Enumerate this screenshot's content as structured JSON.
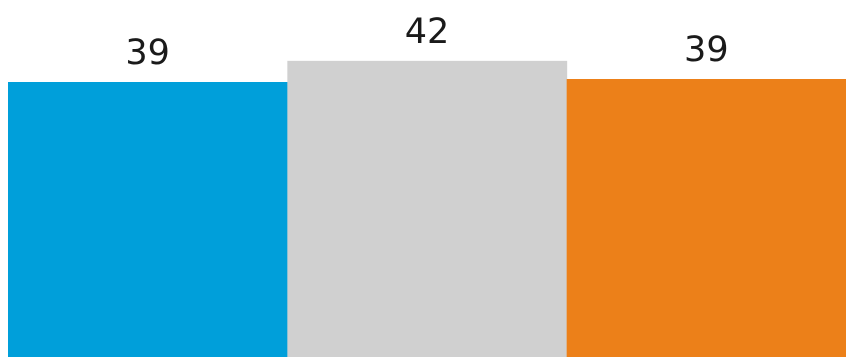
{
  "chart_data": {
    "type": "bar",
    "categories": [
      "",
      "",
      ""
    ],
    "values": [
      39,
      42,
      39
    ],
    "data_labels": [
      "39",
      "42",
      "39"
    ],
    "colors": [
      "#009FDA",
      "#D0D0D0",
      "#EC8019"
    ],
    "title": "",
    "xlabel": "",
    "ylabel": "",
    "grid": false,
    "legend": "none"
  }
}
